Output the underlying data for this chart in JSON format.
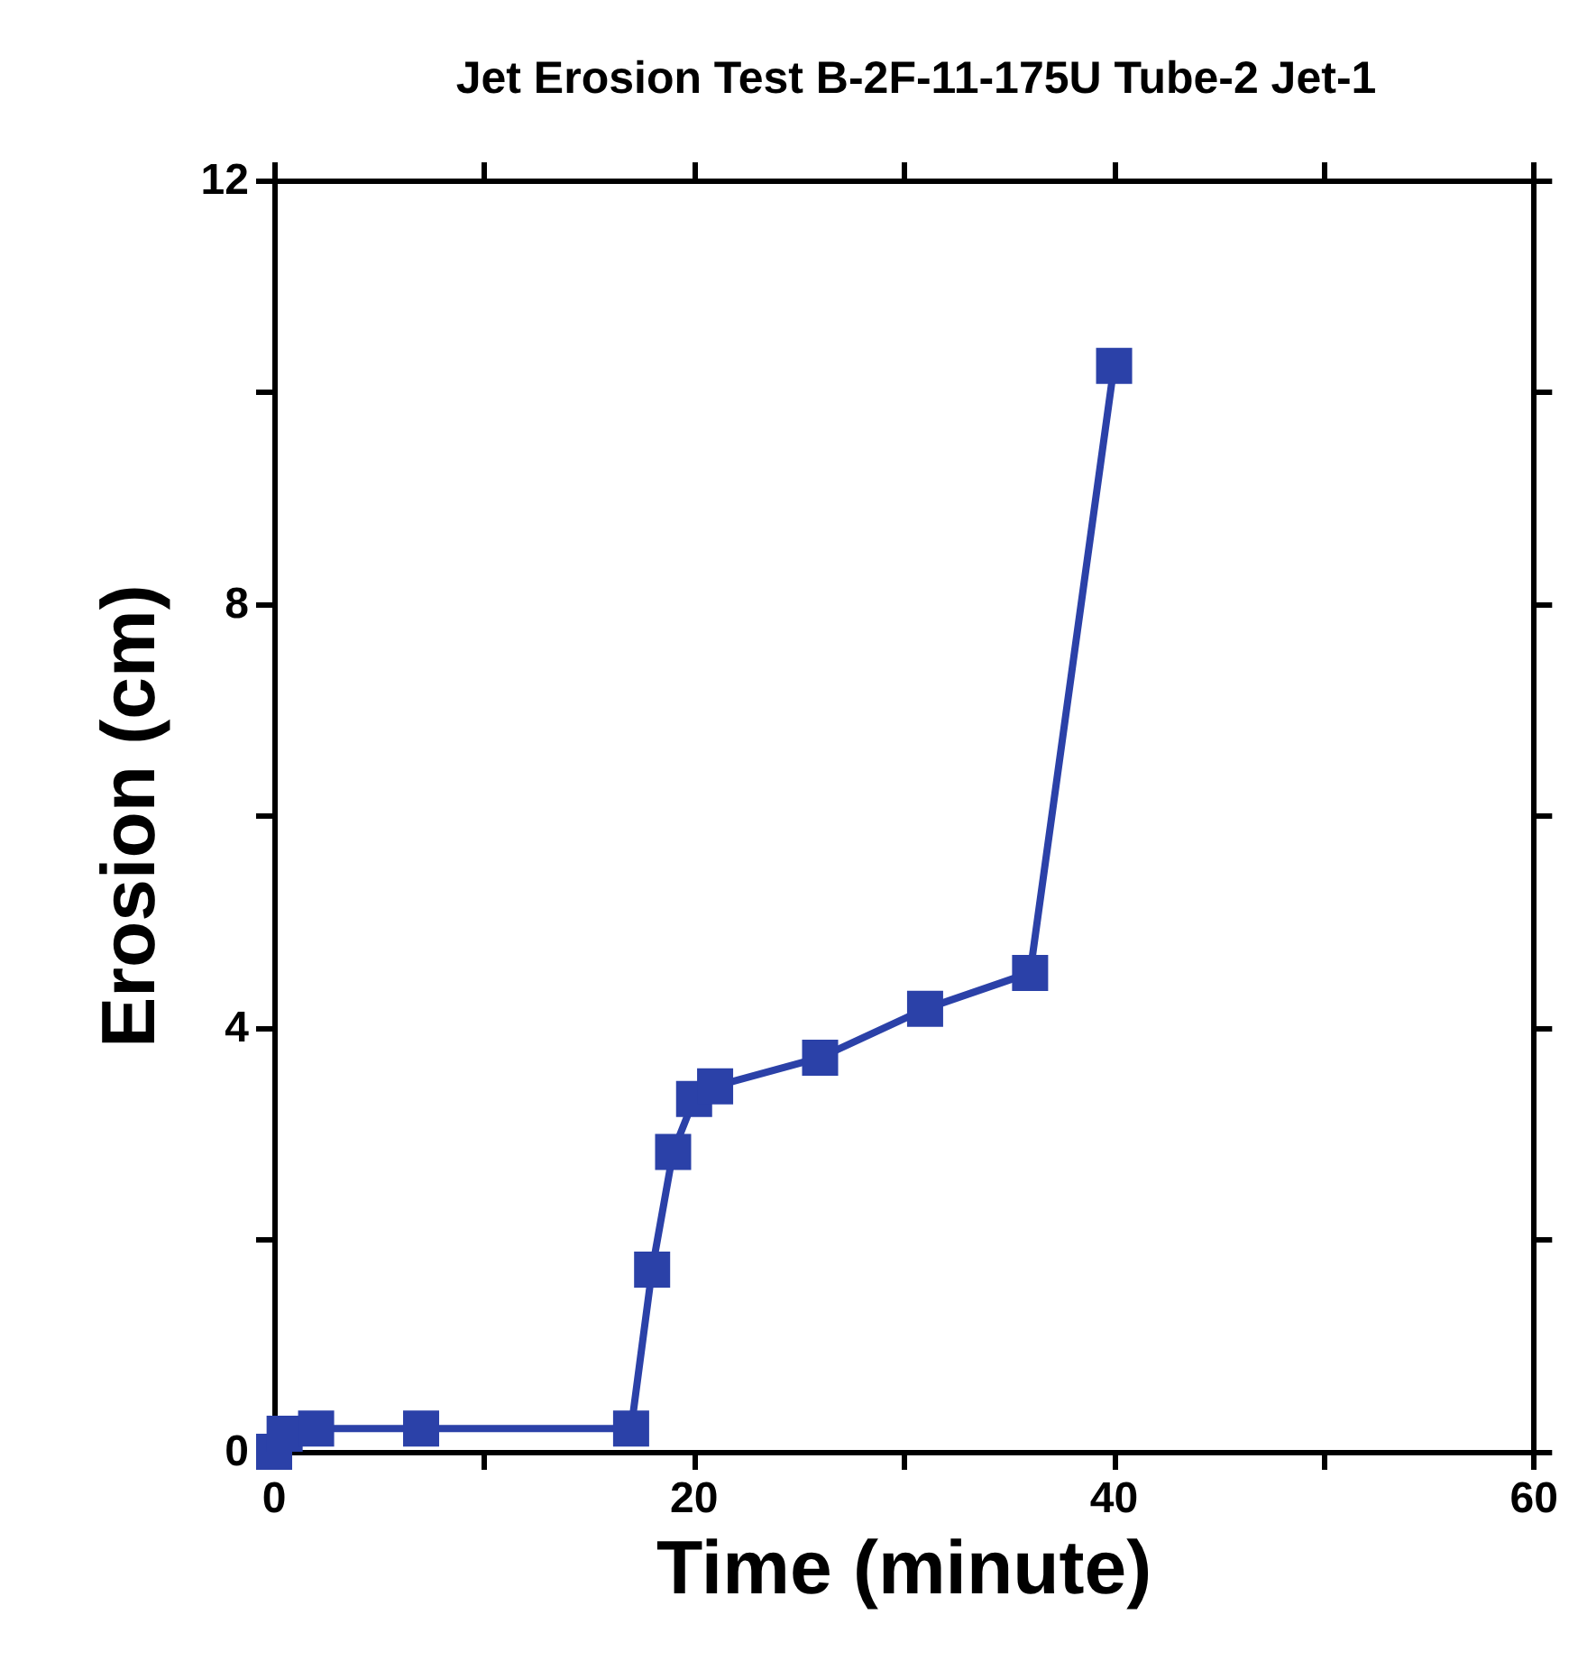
{
  "chart_data": {
    "type": "line",
    "title": "Jet Erosion Test B-2F-11-175U Tube-2 Jet-1",
    "xlabel": "Time (minute)",
    "ylabel": "Erosion (cm)",
    "x": [
      0,
      0.5,
      2,
      7,
      17,
      18,
      19,
      20,
      21,
      26,
      31,
      36,
      40
    ],
    "series": [
      {
        "color": "#2b41a8",
        "values": [
          0,
          0.17,
          0.22,
          0.22,
          0.22,
          1.72,
          2.83,
          3.33,
          3.45,
          3.72,
          4.18,
          4.52,
          10.25
        ]
      }
    ],
    "xlim": [
      0,
      60
    ],
    "xticks": [
      0,
      {
        "value": 10,
        "label": null
      },
      20,
      {
        "value": 30,
        "label": null
      },
      40,
      {
        "value": 50,
        "label": null
      },
      60
    ],
    "ylim": [
      0,
      12
    ],
    "yticks": [
      0,
      {
        "value": 2,
        "label": null
      },
      4,
      {
        "value": 6,
        "label": null
      },
      8,
      {
        "value": 10,
        "label": null
      },
      12
    ],
    "grid": false,
    "marker": "square",
    "line_style": "solid"
  }
}
